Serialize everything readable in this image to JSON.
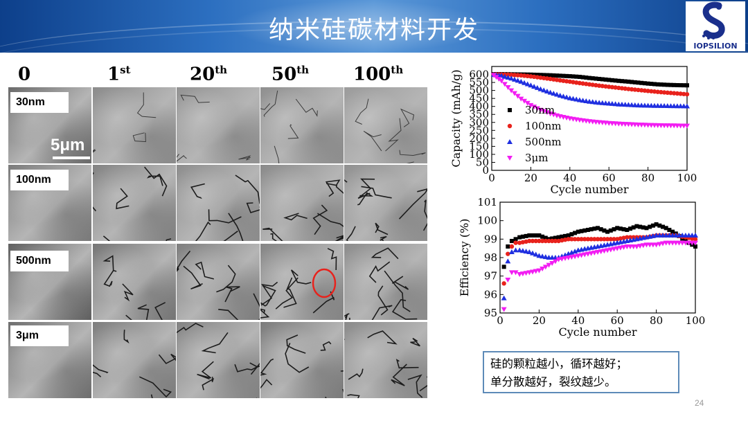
{
  "slide": {
    "title": "纳米硅碳材料开发",
    "logo_text": "IOPSILION",
    "page_number": "24",
    "note_lines": [
      "硅的颗粒越小，循环越好；",
      "单分散越好，裂纹越少。"
    ]
  },
  "grid": {
    "columns": [
      {
        "main": "0",
        "sup": ""
      },
      {
        "main": "1",
        "sup": "st"
      },
      {
        "main": "20",
        "sup": "th"
      },
      {
        "main": "50",
        "sup": "th"
      },
      {
        "main": "100",
        "sup": "th"
      }
    ],
    "rows": [
      "30nm",
      "100nm",
      "500nm",
      "3μm"
    ],
    "scale_bar_label": "5μm"
  },
  "chart_data": [
    {
      "type": "scatter",
      "title": "",
      "xlabel": "Cycle number",
      "ylabel": "Capacity (mAh/g)",
      "xlim": [
        0,
        100
      ],
      "ylim": [
        0,
        650
      ],
      "xticks": [
        "0",
        "20",
        "40",
        "60",
        "80",
        "100"
      ],
      "yticks": [
        "0",
        "50",
        "100",
        "150",
        "200",
        "250",
        "300",
        "350",
        "400",
        "450",
        "500",
        "550",
        "600"
      ],
      "legend_position": "bottom-left",
      "series": [
        {
          "name": "30nm",
          "marker": "square",
          "color": "#000000",
          "x": [
            1,
            5,
            10,
            15,
            20,
            25,
            30,
            35,
            40,
            45,
            50,
            55,
            60,
            65,
            70,
            75,
            80,
            85,
            90,
            95,
            100
          ],
          "values": [
            602,
            602,
            601,
            600,
            599,
            597,
            595,
            592,
            589,
            585,
            578,
            572,
            566,
            560,
            555,
            549,
            543,
            538,
            535,
            533,
            532
          ]
        },
        {
          "name": "100nm",
          "marker": "circle",
          "color": "#e8221c",
          "x": [
            1,
            5,
            10,
            15,
            20,
            25,
            30,
            35,
            40,
            45,
            50,
            55,
            60,
            65,
            70,
            75,
            80,
            85,
            90,
            95,
            100
          ],
          "values": [
            600,
            600,
            598,
            594,
            588,
            580,
            572,
            563,
            555,
            546,
            538,
            530,
            523,
            516,
            509,
            503,
            497,
            491,
            486,
            481,
            476
          ]
        },
        {
          "name": "500nm",
          "marker": "triangle",
          "color": "#1f2fe0",
          "x": [
            1,
            5,
            10,
            15,
            20,
            25,
            30,
            35,
            40,
            45,
            50,
            55,
            60,
            65,
            70,
            75,
            80,
            85,
            90,
            95,
            100
          ],
          "values": [
            598,
            592,
            575,
            555,
            532,
            508,
            487,
            468,
            452,
            440,
            430,
            423,
            418,
            413,
            410,
            407,
            405,
            404,
            403,
            402,
            401
          ]
        },
        {
          "name": "3μm",
          "marker": "triangle-down",
          "color": "#f21df2",
          "x": [
            1,
            5,
            10,
            15,
            20,
            25,
            30,
            35,
            40,
            45,
            50,
            55,
            60,
            65,
            70,
            75,
            80,
            85,
            90,
            95,
            100
          ],
          "values": [
            596,
            560,
            500,
            448,
            408,
            378,
            355,
            338,
            325,
            315,
            307,
            301,
            296,
            292,
            289,
            286,
            284,
            282,
            281,
            280,
            279
          ]
        }
      ]
    },
    {
      "type": "scatter",
      "title": "",
      "xlabel": "Cycle number",
      "ylabel": "Efficiency (%)",
      "xlim": [
        0,
        100
      ],
      "ylim": [
        95,
        101
      ],
      "xticks": [
        "0",
        "20",
        "40",
        "60",
        "80",
        "100"
      ],
      "yticks": [
        "95",
        "96",
        "97",
        "98",
        "99",
        "100",
        "101"
      ],
      "series": [
        {
          "name": "30nm",
          "marker": "square",
          "color": "#000000",
          "x": [
            2,
            4,
            6,
            8,
            10,
            15,
            20,
            25,
            30,
            35,
            40,
            45,
            50,
            55,
            60,
            65,
            70,
            75,
            80,
            85,
            90,
            95,
            100
          ],
          "values": [
            97.5,
            98.6,
            98.9,
            99.0,
            99.1,
            99.2,
            99.2,
            99.0,
            99.1,
            99.2,
            99.4,
            99.5,
            99.6,
            99.4,
            99.6,
            99.5,
            99.7,
            99.6,
            99.8,
            99.6,
            99.3,
            98.9,
            98.6
          ]
        },
        {
          "name": "100nm",
          "marker": "circle",
          "color": "#e8221c",
          "x": [
            2,
            4,
            6,
            8,
            10,
            15,
            20,
            25,
            30,
            35,
            40,
            45,
            50,
            55,
            60,
            65,
            70,
            75,
            80,
            85,
            90,
            95,
            100
          ],
          "values": [
            96.6,
            98.2,
            98.6,
            98.8,
            98.8,
            98.9,
            98.9,
            98.9,
            98.9,
            99.0,
            99.0,
            99.0,
            99.0,
            99.0,
            99.0,
            99.1,
            99.1,
            99.1,
            99.2,
            99.2,
            99.2,
            99.1,
            99.0
          ]
        },
        {
          "name": "500nm",
          "marker": "triangle",
          "color": "#1f2fe0",
          "x": [
            2,
            4,
            6,
            8,
            10,
            15,
            20,
            25,
            30,
            35,
            40,
            45,
            50,
            55,
            60,
            65,
            70,
            75,
            80,
            85,
            90,
            95,
            100
          ],
          "values": [
            95.8,
            97.8,
            98.3,
            98.4,
            98.4,
            98.3,
            98.1,
            98.0,
            98.0,
            98.2,
            98.4,
            98.5,
            98.6,
            98.7,
            98.8,
            98.9,
            99.0,
            99.1,
            99.2,
            99.2,
            99.2,
            99.2,
            99.2
          ]
        },
        {
          "name": "3μm",
          "marker": "triangle-down",
          "color": "#f21df2",
          "x": [
            2,
            4,
            6,
            8,
            10,
            15,
            20,
            25,
            30,
            35,
            40,
            45,
            50,
            55,
            60,
            65,
            70,
            75,
            80,
            85,
            90,
            95,
            100
          ],
          "values": [
            95.2,
            96.8,
            97.2,
            97.2,
            97.1,
            97.2,
            97.3,
            97.6,
            97.9,
            98.0,
            98.1,
            98.2,
            98.3,
            98.4,
            98.5,
            98.6,
            98.6,
            98.7,
            98.7,
            98.8,
            98.8,
            98.8,
            98.8
          ]
        }
      ]
    }
  ]
}
